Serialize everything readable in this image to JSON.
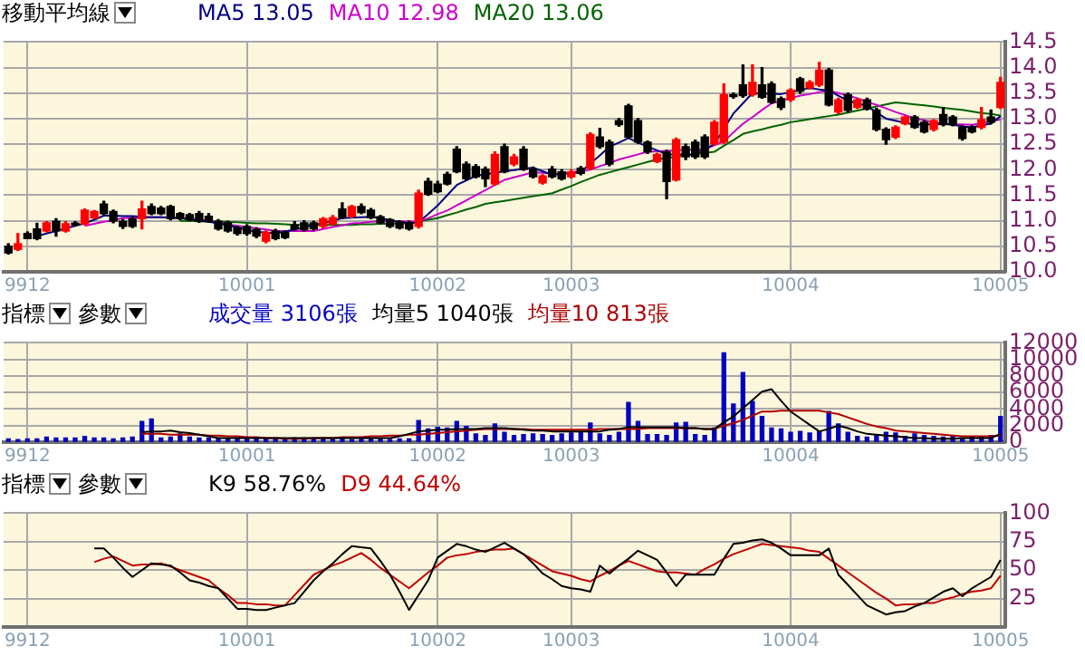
{
  "chart_data": [
    {
      "type": "candlestick",
      "annotations": [
        "移動平均線"
      ],
      "legend": "top left",
      "grid": true,
      "categories": [
        null,
        null,
        "9912",
        null,
        null,
        null,
        null,
        null,
        null,
        null,
        null,
        null,
        null,
        null,
        null,
        null,
        null,
        null,
        null,
        null,
        null,
        null,
        null,
        null,
        null,
        "10001",
        null,
        null,
        null,
        null,
        null,
        null,
        null,
        null,
        null,
        null,
        null,
        null,
        null,
        null,
        null,
        null,
        null,
        null,
        null,
        "10002",
        null,
        null,
        null,
        null,
        null,
        null,
        null,
        null,
        null,
        null,
        null,
        null,
        null,
        "10003",
        null,
        null,
        null,
        null,
        null,
        null,
        null,
        null,
        null,
        null,
        null,
        null,
        null,
        null,
        null,
        null,
        null,
        null,
        null,
        null,
        null,
        null,
        "10004",
        null,
        null,
        null,
        null,
        null,
        null,
        null,
        null,
        null,
        null,
        null,
        null,
        null,
        null,
        null,
        null,
        null,
        null,
        null,
        null,
        null,
        "10005"
      ],
      "ohlc": [
        [
          10.5,
          10.55,
          10.35,
          10.37
        ],
        [
          10.44,
          10.75,
          10.42,
          10.55
        ],
        [
          10.75,
          10.78,
          10.65,
          10.65
        ],
        [
          10.84,
          10.95,
          10.63,
          10.65
        ],
        [
          10.8,
          10.98,
          10.78,
          10.96
        ],
        [
          10.99,
          11.04,
          10.7,
          10.8
        ],
        [
          10.8,
          10.98,
          10.78,
          10.94
        ],
        [
          10.95,
          10.98,
          10.9,
          10.92
        ],
        [
          10.94,
          11.23,
          10.92,
          11.21
        ],
        [
          11.06,
          11.2,
          11.04,
          11.18
        ],
        [
          11.33,
          11.38,
          11.12,
          11.14
        ],
        [
          11.18,
          11.21,
          10.96,
          10.99
        ],
        [
          10.99,
          11.02,
          10.85,
          10.89
        ],
        [
          11.04,
          11.06,
          10.87,
          10.89
        ],
        [
          11.04,
          11.38,
          10.84,
          11.23
        ],
        [
          11.28,
          11.33,
          11.12,
          11.14
        ],
        [
          11.25,
          11.28,
          11.12,
          11.14
        ],
        [
          11.28,
          11.3,
          11.02,
          11.04
        ],
        [
          11.14,
          11.16,
          11.02,
          11.04
        ],
        [
          11.12,
          11.14,
          11.0,
          11.02
        ],
        [
          11.14,
          11.18,
          10.97,
          10.99
        ],
        [
          11.09,
          11.14,
          10.97,
          10.99
        ],
        [
          10.99,
          11.02,
          10.82,
          10.84
        ],
        [
          10.96,
          10.99,
          10.78,
          10.8
        ],
        [
          10.86,
          10.89,
          10.72,
          10.75
        ],
        [
          10.89,
          10.92,
          10.72,
          10.75
        ],
        [
          10.83,
          10.86,
          10.67,
          10.7
        ],
        [
          10.6,
          10.8,
          10.57,
          10.77
        ],
        [
          10.8,
          10.83,
          10.63,
          10.65
        ],
        [
          10.77,
          10.8,
          10.65,
          10.67
        ],
        [
          10.92,
          10.98,
          10.82,
          10.84
        ],
        [
          10.96,
          11.0,
          10.8,
          10.83
        ],
        [
          10.96,
          10.99,
          10.82,
          10.84
        ],
        [
          10.89,
          11.06,
          10.86,
          11.04
        ],
        [
          10.94,
          11.1,
          10.92,
          11.06
        ],
        [
          11.23,
          11.35,
          11.04,
          11.06
        ],
        [
          11.09,
          11.3,
          11.06,
          11.28
        ],
        [
          11.28,
          11.33,
          11.14,
          11.16
        ],
        [
          11.21,
          11.24,
          11.04,
          11.06
        ],
        [
          11.08,
          11.1,
          10.94,
          10.96
        ],
        [
          11.02,
          11.04,
          10.87,
          10.89
        ],
        [
          10.98,
          11.0,
          10.84,
          10.86
        ],
        [
          10.96,
          10.99,
          10.82,
          10.84
        ],
        [
          10.89,
          11.6,
          10.86,
          11.54
        ],
        [
          11.77,
          11.83,
          11.5,
          11.52
        ],
        [
          11.72,
          11.77,
          11.55,
          11.57
        ],
        [
          11.91,
          11.95,
          11.7,
          11.72
        ],
        [
          12.4,
          12.45,
          11.94,
          11.96
        ],
        [
          12.11,
          12.15,
          11.8,
          11.82
        ],
        [
          12.06,
          12.1,
          11.84,
          11.86
        ],
        [
          12.01,
          12.05,
          11.67,
          11.82
        ],
        [
          11.72,
          12.35,
          11.7,
          12.3
        ],
        [
          12.45,
          12.5,
          11.94,
          11.96
        ],
        [
          12.11,
          12.3,
          12.08,
          12.25
        ],
        [
          12.4,
          12.45,
          11.99,
          12.01
        ],
        [
          12.01,
          12.05,
          11.84,
          11.86
        ],
        [
          11.74,
          11.9,
          11.72,
          11.88
        ],
        [
          12.01,
          12.06,
          11.84,
          11.86
        ],
        [
          11.96,
          12.0,
          11.8,
          11.82
        ],
        [
          11.86,
          12.0,
          11.84,
          11.96
        ],
        [
          12.03,
          12.06,
          11.9,
          11.93
        ],
        [
          12.03,
          12.72,
          12.0,
          12.69
        ],
        [
          12.64,
          12.81,
          12.42,
          12.45
        ],
        [
          12.54,
          12.58,
          12.08,
          12.11
        ],
        [
          12.96,
          13.0,
          12.85,
          12.88
        ],
        [
          13.25,
          13.28,
          12.62,
          12.64
        ],
        [
          12.96,
          13.0,
          12.52,
          12.54
        ],
        [
          12.54,
          12.56,
          12.32,
          12.35
        ],
        [
          12.16,
          12.32,
          12.14,
          12.3
        ],
        [
          12.35,
          12.38,
          11.43,
          11.77
        ],
        [
          11.8,
          12.62,
          11.78,
          12.59
        ],
        [
          12.45,
          12.5,
          12.2,
          12.25
        ],
        [
          12.54,
          12.58,
          12.22,
          12.25
        ],
        [
          12.64,
          12.68,
          12.22,
          12.25
        ],
        [
          12.51,
          12.96,
          12.48,
          12.93
        ],
        [
          12.54,
          13.68,
          12.52,
          13.47
        ],
        [
          13.47,
          13.5,
          13.4,
          13.43
        ],
        [
          13.66,
          14.05,
          13.42,
          13.45
        ],
        [
          13.47,
          14.05,
          13.44,
          13.71
        ],
        [
          13.66,
          14.0,
          13.4,
          13.42
        ],
        [
          13.68,
          13.72,
          13.3,
          13.32
        ],
        [
          13.39,
          13.42,
          13.18,
          13.22
        ],
        [
          13.37,
          13.58,
          13.34,
          13.56
        ],
        [
          13.78,
          13.81,
          13.5,
          13.54
        ],
        [
          13.61,
          13.74,
          13.58,
          13.71
        ],
        [
          13.66,
          14.1,
          13.63,
          13.95
        ],
        [
          13.95,
          13.98,
          13.25,
          13.27
        ],
        [
          13.13,
          13.4,
          13.1,
          13.37
        ],
        [
          13.47,
          13.5,
          13.13,
          13.16
        ],
        [
          13.22,
          13.39,
          13.2,
          13.37
        ],
        [
          13.37,
          13.4,
          13.17,
          13.19
        ],
        [
          13.17,
          13.2,
          12.76,
          12.79
        ],
        [
          12.79,
          12.82,
          12.5,
          12.59
        ],
        [
          12.64,
          12.86,
          12.61,
          12.83
        ],
        [
          12.9,
          13.05,
          12.88,
          13.03
        ],
        [
          13.03,
          13.06,
          12.81,
          12.83
        ],
        [
          12.93,
          12.96,
          12.72,
          12.74
        ],
        [
          12.79,
          12.98,
          12.76,
          12.96
        ],
        [
          13.08,
          13.22,
          12.86,
          12.88
        ],
        [
          13.03,
          13.06,
          12.86,
          12.88
        ],
        [
          12.83,
          12.86,
          12.58,
          12.61
        ],
        [
          12.83,
          12.86,
          12.72,
          12.74
        ],
        [
          12.83,
          13.22,
          12.8,
          12.98
        ],
        [
          13.03,
          13.17,
          12.9,
          12.93
        ],
        [
          13.22,
          13.81,
          13.2,
          13.71
        ]
      ],
      "colors": [
        "#000000",
        "#ff0000",
        "#000000",
        "#000000",
        "#ff0000",
        "#000000",
        "#ff0000",
        "#000000",
        "#ff0000",
        "#ff0000",
        "#000000",
        "#000000",
        "#000000",
        "#000000",
        "#ff0000",
        "#000000",
        "#000000",
        "#000000",
        "#000000",
        "#000000",
        "#000000",
        "#000000",
        "#000000",
        "#000000",
        "#000000",
        "#000000",
        "#000000",
        "#ff0000",
        "#000000",
        "#000000",
        "#000000",
        "#000000",
        "#000000",
        "#ff0000",
        "#ff0000",
        "#000000",
        "#ff0000",
        "#000000",
        "#000000",
        "#000000",
        "#000000",
        "#000000",
        "#000000",
        "#ff0000",
        "#000000",
        "#000000",
        "#000000",
        "#000000",
        "#000000",
        "#000000",
        "#000000",
        "#ff0000",
        "#000000",
        "#ff0000",
        "#000000",
        "#000000",
        "#ff0000",
        "#000000",
        "#000000",
        "#ff0000",
        "#000000",
        "#ff0000",
        "#000000",
        "#000000",
        "#000000",
        "#000000",
        "#000000",
        "#000000",
        "#ff0000",
        "#000000",
        "#ff0000",
        "#000000",
        "#000000",
        "#000000",
        "#ff0000",
        "#ff0000",
        "#000000",
        "#000000",
        "#ff0000",
        "#000000",
        "#000000",
        "#000000",
        "#ff0000",
        "#000000",
        "#ff0000",
        "#ff0000",
        "#000000",
        "#ff0000",
        "#000000",
        "#ff0000",
        "#000000",
        "#000000",
        "#000000",
        "#ff0000",
        "#ff0000",
        "#000000",
        "#000000",
        "#ff0000",
        "#000000",
        "#000000",
        "#000000",
        "#000000",
        "#ff0000",
        "#000000",
        "#ff0000"
      ],
      "series": [
        {
          "type": "line",
          "name": "MA5 13.05",
          "color": "#000080",
          "values": [
            null,
            null,
            null,
            10.7,
            10.75,
            10.8,
            10.85,
            10.9,
            10.95,
            11.02,
            11.1,
            11.1,
            11.09,
            11.09,
            11.08,
            11.07,
            11.07,
            11.06,
            11.05,
            11.03,
            11.0,
            10.98,
            10.95,
            10.91,
            10.87,
            10.82,
            10.78,
            10.77,
            10.75,
            10.79,
            10.83,
            10.87,
            10.92,
            10.96,
            11.0,
            11.05,
            11.06,
            11.07,
            11.08,
            11.05,
            11.01,
            10.98,
            10.95,
            10.97,
            11.13,
            11.3,
            11.5,
            11.7,
            11.79,
            11.88,
            11.91,
            11.94,
            11.97,
            11.99,
            12.02,
            12.04,
            11.97,
            11.9,
            11.92,
            11.93,
            11.95,
            12.12,
            12.28,
            12.45,
            12.53,
            12.62,
            12.53,
            12.45,
            12.38,
            12.3,
            12.3,
            12.3,
            12.3,
            12.4,
            12.5,
            12.8,
            13.1,
            13.3,
            13.5,
            13.49,
            13.49,
            13.48,
            13.52,
            13.56,
            13.6,
            13.57,
            13.55,
            13.45,
            13.35,
            13.3,
            13.25,
            13.12,
            13.0,
            12.96,
            12.92,
            12.88,
            12.89,
            12.89,
            12.9,
            12.88,
            12.85,
            12.83,
            12.87,
            12.9,
            13.05
          ]
        },
        {
          "type": "line",
          "name": "MA10 12.98",
          "color": "#cc00cc",
          "values": [
            null,
            null,
            null,
            null,
            null,
            null,
            null,
            null,
            10.9,
            10.94,
            10.98,
            11.01,
            11.05,
            11.06,
            11.06,
            11.07,
            11.07,
            11.06,
            11.05,
            11.04,
            11.03,
            11.0,
            10.97,
            10.93,
            10.9,
            10.88,
            10.85,
            10.83,
            10.8,
            10.8,
            10.8,
            10.8,
            10.8,
            10.84,
            10.88,
            10.91,
            10.95,
            10.96,
            10.98,
            10.99,
            11.0,
            10.99,
            10.99,
            10.98,
            11.05,
            11.13,
            11.2,
            11.3,
            11.4,
            11.5,
            11.6,
            11.7,
            11.8,
            11.85,
            11.9,
            11.95,
            11.94,
            11.93,
            11.92,
            11.95,
            11.97,
            12.0,
            12.07,
            12.13,
            12.2,
            12.25,
            12.3,
            12.35,
            12.36,
            12.37,
            12.38,
            12.39,
            12.39,
            12.4,
            12.48,
            12.55,
            12.73,
            12.9,
            13.03,
            13.17,
            13.3,
            13.35,
            13.4,
            13.45,
            13.48,
            13.52,
            13.55,
            13.5,
            13.45,
            13.4,
            13.33,
            13.27,
            13.2,
            13.13,
            13.07,
            13.0,
            12.97,
            12.93,
            12.9,
            12.89,
            12.89,
            12.88,
            12.91,
            12.95,
            12.98
          ]
        },
        {
          "type": "line",
          "name": "MA20 13.06",
          "color": "#006400",
          "values": [
            null,
            null,
            null,
            null,
            null,
            null,
            null,
            null,
            null,
            null,
            null,
            null,
            null,
            null,
            null,
            null,
            null,
            null,
            11.0,
            11.0,
            10.99,
            10.99,
            10.98,
            10.98,
            10.97,
            10.96,
            10.95,
            10.95,
            10.94,
            10.93,
            10.92,
            10.92,
            10.92,
            10.92,
            10.92,
            10.92,
            10.92,
            10.93,
            10.93,
            10.94,
            10.94,
            10.95,
            10.95,
            10.98,
            11.02,
            11.05,
            11.11,
            11.16,
            11.22,
            11.27,
            11.33,
            11.36,
            11.39,
            11.42,
            11.45,
            11.48,
            11.51,
            11.54,
            11.61,
            11.68,
            11.76,
            11.83,
            11.9,
            11.95,
            12.0,
            12.05,
            12.1,
            12.15,
            12.2,
            12.23,
            12.25,
            12.28,
            12.3,
            12.33,
            12.35,
            12.47,
            12.58,
            12.7,
            12.75,
            12.79,
            12.84,
            12.88,
            12.93,
            12.96,
            12.99,
            13.02,
            13.05,
            13.08,
            13.12,
            13.16,
            13.2,
            13.24,
            13.28,
            13.32,
            13.3,
            13.28,
            13.26,
            13.24,
            13.21,
            13.19,
            13.17,
            13.14,
            13.11,
            13.09,
            13.06
          ]
        }
      ],
      "ylim": [
        10,
        14.5
      ],
      "yticks": [
        {
          "value": 10,
          "label": "10.0"
        },
        {
          "value": 10.5,
          "label": "10.5"
        },
        {
          "value": 11,
          "label": "11.0"
        },
        {
          "value": 11.5,
          "label": "11.5"
        },
        {
          "value": 12,
          "label": "12.0"
        },
        {
          "value": 12.5,
          "label": "12.5"
        },
        {
          "value": 13,
          "label": "13.0"
        },
        {
          "value": 13.5,
          "label": "13.5"
        },
        {
          "value": 14,
          "label": "14.0"
        },
        {
          "value": 14.5,
          "label": "14.5"
        }
      ]
    },
    {
      "type": "bar",
      "annotations": [
        "指標",
        "參數"
      ],
      "legend": "top left",
      "grid": true,
      "categories": [
        null,
        null,
        "9912",
        null,
        null,
        null,
        null,
        null,
        null,
        null,
        null,
        null,
        null,
        null,
        null,
        null,
        null,
        null,
        null,
        null,
        null,
        null,
        null,
        null,
        null,
        "10001",
        null,
        null,
        null,
        null,
        null,
        null,
        null,
        null,
        null,
        null,
        null,
        null,
        null,
        null,
        null,
        null,
        null,
        null,
        null,
        "10002",
        null,
        null,
        null,
        null,
        null,
        null,
        null,
        null,
        null,
        null,
        null,
        null,
        null,
        "10003",
        null,
        null,
        null,
        null,
        null,
        null,
        null,
        null,
        null,
        null,
        null,
        null,
        null,
        null,
        null,
        null,
        null,
        null,
        null,
        null,
        null,
        null,
        "10004",
        null,
        null,
        null,
        null,
        null,
        null,
        null,
        null,
        null,
        null,
        null,
        null,
        null,
        null,
        null,
        null,
        null,
        null,
        null,
        null,
        null,
        "10005"
      ],
      "series": [
        {
          "type": "bar",
          "name": "成交量 3106張",
          "color": "#0000c0",
          "values": [
            400,
            300,
            400,
            400,
            600,
            500,
            500,
            500,
            700,
            500,
            500,
            400,
            500,
            600,
            2500,
            2800,
            500,
            600,
            1000,
            600,
            500,
            500,
            500,
            400,
            500,
            400,
            400,
            400,
            400,
            400,
            500,
            500,
            400,
            500,
            400,
            400,
            300,
            400,
            400,
            400,
            300,
            400,
            400,
            2600,
            1600,
            1800,
            1700,
            2500,
            1900,
            1000,
            800,
            2200,
            1200,
            800,
            900,
            1000,
            900,
            800,
            1000,
            1100,
            1200,
            2300,
            1000,
            800,
            1200,
            4800,
            2500,
            900,
            900,
            800,
            2300,
            2400,
            900,
            800,
            1700,
            10800,
            4600,
            8400,
            4900,
            3100,
            1700,
            1600,
            1200,
            1300,
            1100,
            1300,
            3700,
            2200,
            1200,
            700,
            600,
            900,
            1200,
            1100,
            700,
            1000,
            800,
            700,
            600,
            700,
            500,
            600,
            700,
            800,
            3100
          ]
        },
        {
          "type": "line",
          "name": "均量5 1040張",
          "color": "#000000",
          "values": [
            null,
            null,
            null,
            null,
            null,
            null,
            null,
            null,
            null,
            null,
            null,
            null,
            null,
            null,
            1200,
            1300,
            1300,
            1400,
            1200,
            1100,
            900,
            700,
            500,
            500,
            500,
            500,
            500,
            500,
            500,
            500,
            500,
            500,
            500,
            500,
            500,
            500,
            500,
            500,
            500,
            500,
            500,
            700,
            1000,
            1300,
            1400,
            1500,
            1500,
            1600,
            1600,
            1600,
            1700,
            1700,
            1700,
            1600,
            1500,
            1400,
            1400,
            1300,
            1300,
            1300,
            1300,
            1300,
            1300,
            1500,
            1600,
            1800,
            1800,
            1800,
            1800,
            1800,
            1800,
            1700,
            1700,
            1600,
            1600,
            2400,
            3100,
            4100,
            5100,
            6100,
            6400,
            5000,
            3700,
            2900,
            2100,
            1300,
            1600,
            2000,
            1700,
            1300,
            1000,
            900,
            800,
            700,
            600,
            500,
            500,
            400,
            400,
            400,
            500,
            500,
            500,
            500,
            1000
          ]
        },
        {
          "type": "line",
          "name": "均量10 813張",
          "color": "#b00000",
          "values": [
            null,
            null,
            null,
            null,
            null,
            null,
            null,
            null,
            null,
            null,
            null,
            null,
            null,
            null,
            1000,
            1000,
            1000,
            900,
            900,
            900,
            900,
            800,
            800,
            700,
            700,
            600,
            600,
            500,
            500,
            400,
            400,
            400,
            500,
            500,
            500,
            600,
            600,
            600,
            700,
            700,
            800,
            800,
            900,
            900,
            1000,
            1100,
            1200,
            1300,
            1400,
            1500,
            1600,
            1600,
            1600,
            1600,
            1600,
            1500,
            1500,
            1500,
            1500,
            1500,
            1500,
            1500,
            1600,
            1600,
            1600,
            1600,
            1600,
            1700,
            1700,
            1700,
            1700,
            1700,
            1700,
            1600,
            1600,
            2000,
            2300,
            2700,
            3200,
            3700,
            3700,
            3800,
            3800,
            3800,
            3800,
            3800,
            3600,
            3400,
            3000,
            2600,
            2200,
            1900,
            1700,
            1400,
            1300,
            1200,
            1100,
            1000,
            900,
            800,
            700,
            700,
            700,
            700,
            800
          ]
        }
      ],
      "ylim": [
        0,
        12000
      ],
      "yticks": [
        0,
        2000,
        4000,
        6000,
        8000,
        10000,
        12000
      ]
    },
    {
      "type": "line",
      "annotations": [
        "指標",
        "參數"
      ],
      "legend": "top left",
      "grid": true,
      "categories": [
        null,
        null,
        "9912",
        null,
        null,
        null,
        null,
        null,
        null,
        null,
        null,
        null,
        null,
        null,
        null,
        null,
        null,
        null,
        null,
        null,
        null,
        null,
        null,
        null,
        null,
        "10001",
        null,
        null,
        null,
        null,
        null,
        null,
        null,
        null,
        null,
        null,
        null,
        null,
        null,
        null,
        null,
        null,
        null,
        null,
        null,
        "10002",
        null,
        null,
        null,
        null,
        null,
        null,
        null,
        null,
        null,
        null,
        null,
        null,
        null,
        "10003",
        null,
        null,
        null,
        null,
        null,
        null,
        null,
        null,
        null,
        null,
        null,
        null,
        null,
        null,
        null,
        null,
        null,
        null,
        null,
        null,
        null,
        null,
        "10004",
        null,
        null,
        null,
        null,
        null,
        null,
        null,
        null,
        null,
        null,
        null,
        null,
        null,
        null,
        null,
        null,
        null,
        null,
        null,
        null,
        null,
        "10005"
      ],
      "series": [
        {
          "type": "line",
          "name": "K9 58.76%",
          "color": "#000000",
          "values": [
            null,
            null,
            null,
            null,
            null,
            null,
            null,
            null,
            null,
            69,
            69,
            61,
            52,
            44,
            50,
            56,
            55,
            54,
            48,
            41,
            39,
            36,
            34,
            25,
            16,
            16,
            15,
            15,
            17,
            19,
            21,
            31,
            41,
            49,
            56,
            64,
            71,
            70,
            69,
            58,
            46,
            31,
            15,
            28,
            41,
            61,
            67,
            73,
            71,
            68,
            66,
            70,
            74,
            69,
            64,
            56,
            47,
            42,
            36,
            34,
            33,
            31,
            54,
            47,
            54,
            60,
            67,
            63,
            59,
            48,
            36,
            46,
            46,
            46,
            46,
            60,
            73,
            74,
            76,
            77,
            74,
            69,
            63,
            63,
            63,
            63,
            69,
            46,
            37,
            28,
            19,
            15,
            11,
            13,
            14,
            18,
            21,
            26,
            31,
            34,
            27,
            34,
            39,
            44,
            59
          ]
        },
        {
          "type": "line",
          "name": "D9 44.64%",
          "color": "#c00000",
          "values": [
            null,
            null,
            null,
            null,
            null,
            null,
            null,
            null,
            null,
            57,
            60,
            62,
            58,
            54,
            55,
            55,
            56,
            53,
            50,
            47,
            44,
            41,
            34,
            28,
            21,
            21,
            20,
            20,
            19,
            19,
            28,
            37,
            46,
            50,
            54,
            57,
            61,
            65,
            59,
            52,
            46,
            40,
            34,
            41,
            48,
            54,
            61,
            63,
            64,
            66,
            67,
            68,
            68,
            69,
            64,
            59,
            54,
            49,
            47,
            45,
            42,
            40,
            45,
            49,
            54,
            58,
            55,
            52,
            49,
            48,
            48,
            47,
            46,
            51,
            55,
            60,
            64,
            67,
            70,
            73,
            72,
            71,
            70,
            69,
            67,
            66,
            60,
            54,
            48,
            42,
            36,
            30,
            25,
            19,
            20,
            20,
            21,
            21,
            24,
            26,
            29,
            31,
            32,
            34,
            45
          ]
        }
      ],
      "ylim": [
        0,
        100
      ],
      "yticks": [
        25,
        50,
        75,
        100
      ]
    }
  ]
}
